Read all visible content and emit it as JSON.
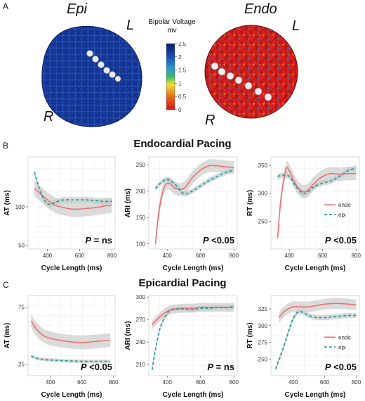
{
  "panels": {
    "a": "A",
    "b": "B",
    "c": "C"
  },
  "maps": {
    "epi_title": "Epi",
    "endo_title": "Endo",
    "epi_left_label": "L",
    "epi_right_label": "R",
    "endo_left_label": "L",
    "endo_right_label": "R"
  },
  "colorbar": {
    "title_line1": "Bipolar Voltage",
    "title_line2": "mv",
    "ticks": [
      "2.5",
      "2",
      "1.5",
      "1",
      "0.5",
      "0"
    ],
    "colors": [
      "#0a1e6e",
      "#1f4fb0",
      "#2a9ad0",
      "#3fb86a",
      "#f0e030",
      "#e86a1a",
      "#d01818"
    ]
  },
  "sections": {
    "endocardial": "Endocardial Pacing",
    "epicardial": "Epicardial Pacing"
  },
  "series_colors": {
    "endo": "#f07070",
    "epi": "#20a0a8",
    "band": "#c8c8c8"
  },
  "chart_data": [
    {
      "type": "line",
      "id": "b1",
      "xlabel": "Cycle Length (ms)",
      "ylabel": "AT (ms)",
      "xlim": [
        280,
        820
      ],
      "ylim": [
        45,
        165
      ],
      "xticks": [
        400,
        600,
        800
      ],
      "yticks": [
        50,
        100
      ],
      "grid": true,
      "annotation_p": "P",
      "annotation_rest": " = ns",
      "legend": null,
      "series": [
        {
          "key": "endo",
          "x": [
            320,
            350,
            400,
            450,
            500,
            550,
            600,
            650,
            700,
            750,
            800
          ],
          "y": [
            124,
            118,
            109,
            102,
            99,
            97,
            97,
            98,
            99,
            101,
            102
          ],
          "band": 10
        },
        {
          "key": "epi",
          "x": [
            320,
            340,
            360,
            390,
            420,
            450,
            500,
            550,
            600,
            650,
            700,
            750,
            800
          ],
          "y": [
            145,
            130,
            118,
            106,
            103,
            106,
            109,
            109,
            109,
            109,
            108,
            107,
            107
          ],
          "band": 4
        }
      ]
    },
    {
      "type": "line",
      "id": "b2",
      "xlabel": "Cycle Length (ms)",
      "ylabel": "ARI (ms)",
      "xlim": [
        290,
        820
      ],
      "ylim": [
        90,
        265
      ],
      "xticks": [
        400,
        600,
        800
      ],
      "yticks": [
        100,
        150,
        200,
        250
      ],
      "grid": true,
      "annotation_p": "P",
      "annotation_rest": " <0.05",
      "legend": null,
      "series": [
        {
          "key": "endo",
          "x": [
            330,
            350,
            380,
            410,
            450,
            500,
            550,
            600,
            650,
            700,
            750,
            800
          ],
          "y": [
            100,
            160,
            205,
            215,
            205,
            205,
            225,
            240,
            248,
            248,
            246,
            245
          ],
          "band": 12
        },
        {
          "key": "epi",
          "x": [
            330,
            360,
            400,
            450,
            500,
            550,
            600,
            650,
            700,
            750,
            800
          ],
          "y": [
            205,
            215,
            222,
            212,
            195,
            200,
            210,
            220,
            228,
            235,
            240
          ],
          "band": 5
        }
      ]
    },
    {
      "type": "line",
      "id": "b3",
      "xlabel": "Cycle Length (ms)",
      "ylabel": "RT (ms)",
      "xlim": [
        290,
        820
      ],
      "ylim": [
        200,
        365
      ],
      "xticks": [
        400,
        600,
        800
      ],
      "yticks": [
        250,
        300,
        350
      ],
      "grid": true,
      "annotation_p": "P",
      "annotation_rest": " <0.05",
      "legend": {
        "endo_label": "endo",
        "epi_label": "epi"
      },
      "series": [
        {
          "key": "endo",
          "x": [
            330,
            350,
            380,
            400,
            440,
            480,
            510,
            550,
            600,
            650,
            700,
            750,
            800
          ],
          "y": [
            220,
            290,
            342,
            340,
            315,
            303,
            305,
            318,
            330,
            335,
            334,
            335,
            335
          ],
          "band": 12
        },
        {
          "key": "epi",
          "x": [
            330,
            360,
            400,
            440,
            480,
            510,
            550,
            600,
            650,
            700,
            750,
            800
          ],
          "y": [
            330,
            332,
            330,
            312,
            300,
            302,
            312,
            318,
            322,
            330,
            340,
            345
          ],
          "band": 5
        }
      ]
    },
    {
      "type": "line",
      "id": "c1",
      "xlabel": "Cycle Length (ms)",
      "ylabel": "AT (ms)",
      "xlim": [
        260,
        810
      ],
      "ylim": [
        15,
        85
      ],
      "xticks": [
        400,
        600,
        800
      ],
      "yticks": [
        25,
        75
      ],
      "grid": true,
      "annotation_p": "P",
      "annotation_rest": " <0.05",
      "legend": null,
      "series": [
        {
          "key": "endo",
          "x": [
            280,
            300,
            330,
            370,
            420,
            500,
            600,
            700,
            780
          ],
          "y": [
            63,
            58,
            53,
            49,
            47,
            45,
            44,
            45,
            46
          ],
          "band": 6
        },
        {
          "key": "epi",
          "x": [
            280,
            320,
            370,
            420,
            500,
            600,
            700,
            780
          ],
          "y": [
            32,
            30,
            29,
            28.5,
            28,
            27.5,
            27.5,
            27.5
          ],
          "band": 1.5
        }
      ]
    },
    {
      "type": "line",
      "id": "c2",
      "xlabel": "Cycle Length (ms)",
      "ylabel": "ARI (ms)",
      "xlim": [
        290,
        820
      ],
      "ylim": [
        195,
        302
      ],
      "xticks": [
        400,
        600,
        800
      ],
      "yticks": [
        210,
        240,
        270,
        300
      ],
      "grid": true,
      "annotation_p": "P",
      "annotation_rest": " = ns",
      "legend": null,
      "series": [
        {
          "key": "endo",
          "x": [
            310,
            340,
            380,
            420,
            450,
            500,
            550,
            600,
            650,
            700,
            750,
            800
          ],
          "y": [
            263,
            270,
            278,
            283,
            284,
            285,
            285,
            286,
            286,
            286,
            286,
            286
          ],
          "band": 6
        },
        {
          "key": "epi",
          "x": [
            310,
            330,
            360,
            400,
            430,
            460,
            500,
            550,
            600,
            650,
            700,
            750,
            800
          ],
          "y": [
            203,
            230,
            260,
            278,
            283,
            284,
            284,
            283,
            285,
            285,
            286,
            286,
            287
          ],
          "band": 3
        }
      ]
    },
    {
      "type": "line",
      "id": "c3",
      "xlabel": "Cycle Length (ms)",
      "ylabel": "RT (ms)",
      "xlim": [
        260,
        820
      ],
      "ylim": [
        225,
        345
      ],
      "xticks": [
        400,
        600,
        800
      ],
      "yticks": [
        250,
        275,
        300,
        325
      ],
      "grid": true,
      "annotation_p": "P",
      "annotation_rest": " <0.05",
      "legend": {
        "endo_label": "endo",
        "epi_label": "epi"
      },
      "series": [
        {
          "key": "endo",
          "x": [
            310,
            350,
            400,
            450,
            500,
            550,
            600,
            650,
            700,
            750,
            800
          ],
          "y": [
            312,
            322,
            328,
            328,
            328,
            330,
            332,
            333,
            333,
            332,
            331
          ],
          "band": 8
        },
        {
          "key": "epi",
          "x": [
            290,
            310,
            340,
            370,
            400,
            430,
            460,
            500,
            550,
            600,
            650,
            700,
            750,
            800
          ],
          "y": [
            235,
            248,
            268,
            290,
            310,
            320,
            320,
            315,
            312,
            312,
            313,
            314,
            315,
            315
          ],
          "band": 4
        }
      ]
    }
  ]
}
